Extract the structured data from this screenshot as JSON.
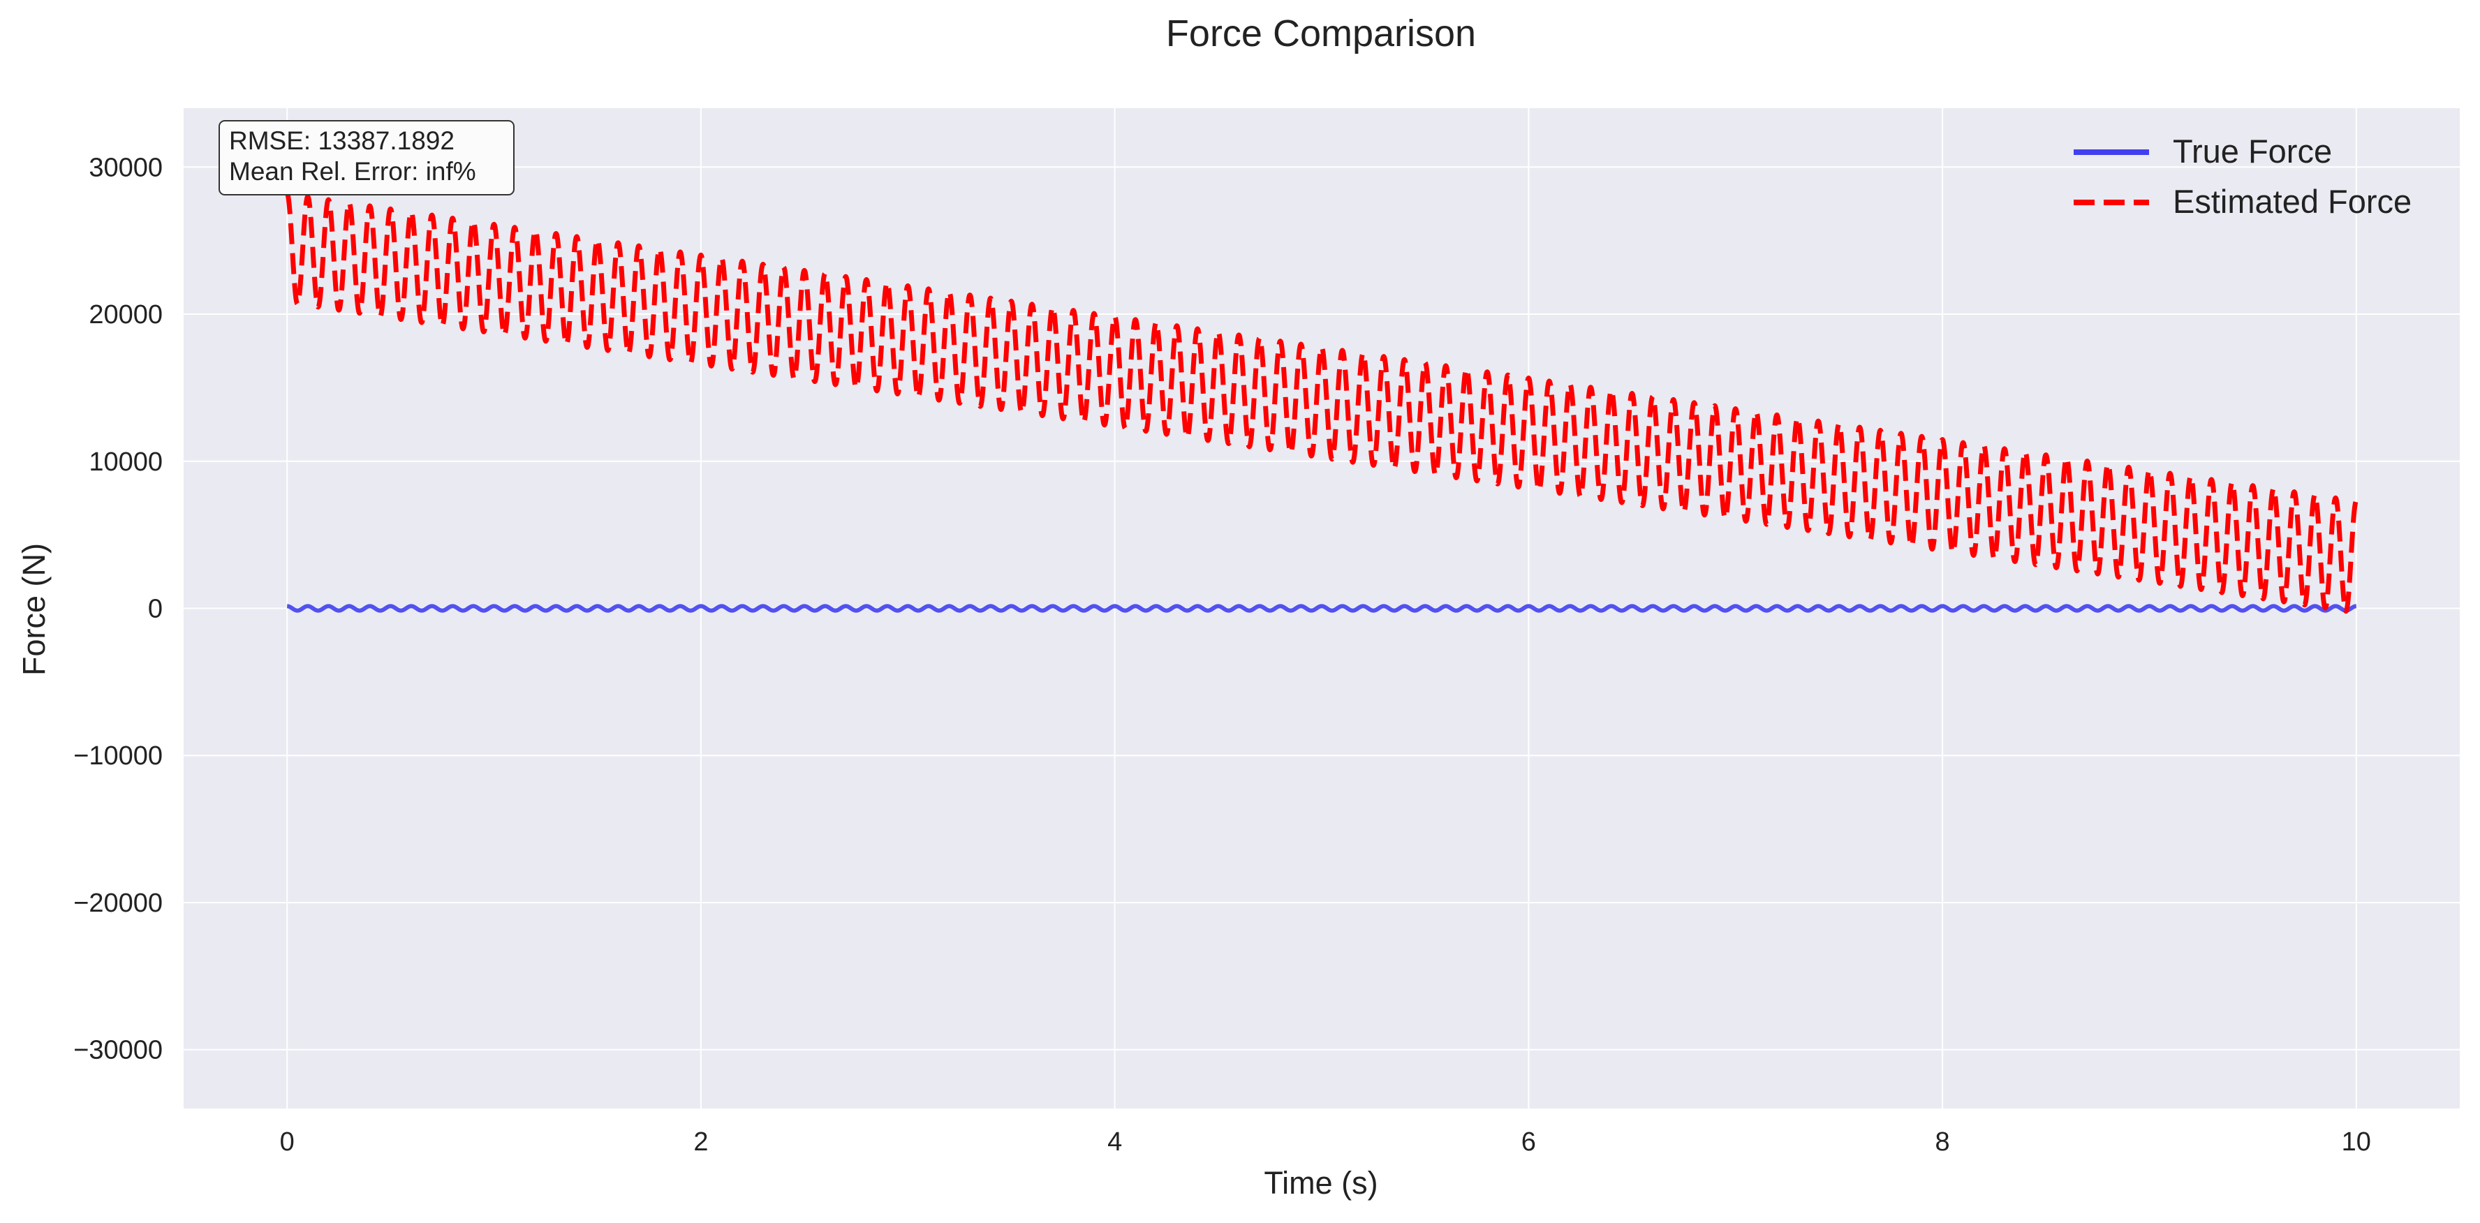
{
  "chart_data": {
    "type": "line",
    "title": "Force Comparison",
    "xlabel": "Time (s)",
    "ylabel": "Force (N)",
    "xlim": [
      -0.5,
      10.5
    ],
    "ylim": [
      -34000,
      34000
    ],
    "xticks": [
      0,
      2,
      4,
      6,
      8,
      10
    ],
    "xtick_labels": [
      "0",
      "2",
      "4",
      "6",
      "8",
      "10"
    ],
    "yticks": [
      -30000,
      -20000,
      -10000,
      0,
      10000,
      20000,
      30000
    ],
    "ytick_labels": [
      "−30000",
      "−20000",
      "−10000",
      "0",
      "10000",
      "20000",
      "30000"
    ],
    "grid": true,
    "background": "#eaeaf2",
    "legend_position": "top-right",
    "annotation": {
      "lines": [
        "RMSE: 13387.1892",
        "Mean Rel. Error: inf%"
      ]
    },
    "series": [
      {
        "name": "True Force",
        "color": "#4040f0",
        "style": "solid",
        "x_range": [
          0,
          10
        ],
        "approx_mean": 0,
        "approx_amplitude": 150,
        "cycles": 100
      },
      {
        "name": "Estimated Force",
        "color": "#ff0000",
        "style": "dashed",
        "x_range": [
          0,
          10
        ],
        "mean_start": 24500,
        "mean_end": 3500,
        "amplitude_start": 3700,
        "amplitude_end": 3800,
        "cycles": 100
      }
    ]
  }
}
